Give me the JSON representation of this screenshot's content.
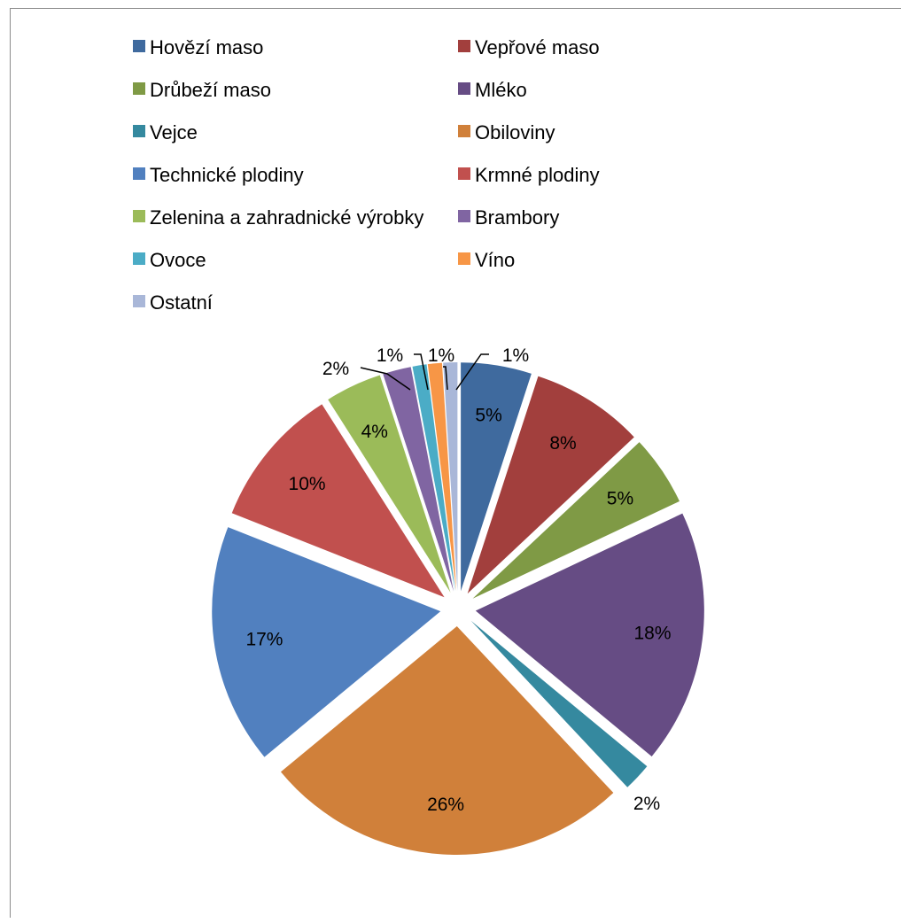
{
  "chart_data": {
    "type": "pie",
    "title": "",
    "exploded": true,
    "legend_position": "top",
    "categories": [
      "Hovězí maso",
      "Vepřové maso",
      "Drůbeží maso",
      "Mléko",
      "Vejce",
      "Obiloviny",
      "Technické plodiny",
      "Krmné plodiny",
      "Zelenina a zahradnické výrobky",
      "Brambory",
      "Ovoce",
      "Víno",
      "Ostatní"
    ],
    "values": [
      5,
      8,
      5,
      18,
      2,
      26,
      17,
      10,
      4,
      2,
      1,
      1,
      1
    ],
    "labels": [
      "5%",
      "8%",
      "5%",
      "18%",
      "2%",
      "26%",
      "17%",
      "10%",
      "4%",
      "2%",
      "1%",
      "1%",
      "1%"
    ],
    "colors": [
      "#3F6A9E",
      "#A23F3D",
      "#7F9A45",
      "#664C84",
      "#35899F",
      "#D0803A",
      "#5180BF",
      "#C1504E",
      "#9BBB59",
      "#8065A2",
      "#4BACC6",
      "#F79646",
      "#A9B7D8"
    ]
  }
}
